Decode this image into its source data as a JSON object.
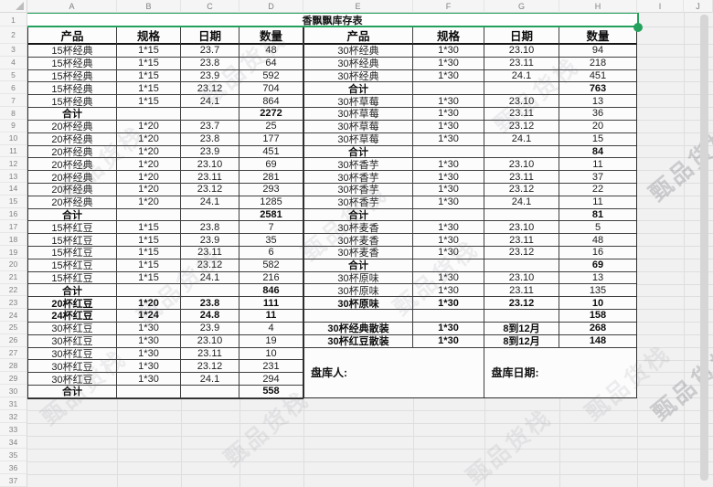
{
  "app": {
    "column_letters": [
      "A",
      "B",
      "C",
      "D",
      "E",
      "F",
      "G",
      "H",
      "I",
      "J"
    ],
    "visible_rows": 37
  },
  "title": "香飘飘库存表",
  "watermark": {
    "text": "甄品货栈"
  },
  "colors": {
    "selection_green": "#23a15d",
    "table_border": "#3f3f3f"
  },
  "left_table": {
    "headers": [
      "产品",
      "规格",
      "日期",
      "数量"
    ],
    "rows": [
      {
        "p": "15杯经典",
        "s": "1*15",
        "d": "23.7",
        "q": "48",
        "st": "n"
      },
      {
        "p": "15杯经典",
        "s": "1*15",
        "d": "23.8",
        "q": "64",
        "st": "n"
      },
      {
        "p": "15杯经典",
        "s": "1*15",
        "d": "23.9",
        "q": "592",
        "st": "n"
      },
      {
        "p": "15杯经典",
        "s": "1*15",
        "d": "23.12",
        "q": "704",
        "st": "n"
      },
      {
        "p": "15杯经典",
        "s": "1*15",
        "d": "24.1",
        "q": "864",
        "st": "n"
      },
      {
        "p": "合计",
        "s": "",
        "d": "",
        "q": "2272",
        "st": "s"
      },
      {
        "p": "20杯经典",
        "s": "1*20",
        "d": "23.7",
        "q": "25",
        "st": "n"
      },
      {
        "p": "20杯经典",
        "s": "1*20",
        "d": "23.8",
        "q": "177",
        "st": "n"
      },
      {
        "p": "20杯经典",
        "s": "1*20",
        "d": "23.9",
        "q": "451",
        "st": "n"
      },
      {
        "p": "20杯经典",
        "s": "1*20",
        "d": "23.10",
        "q": "69",
        "st": "n"
      },
      {
        "p": "20杯经典",
        "s": "1*20",
        "d": "23.11",
        "q": "281",
        "st": "n"
      },
      {
        "p": "20杯经典",
        "s": "1*20",
        "d": "23.12",
        "q": "293",
        "st": "n"
      },
      {
        "p": "20杯经典",
        "s": "1*20",
        "d": "24.1",
        "q": "1285",
        "st": "n"
      },
      {
        "p": "合计",
        "s": "",
        "d": "",
        "q": "2581",
        "st": "s"
      },
      {
        "p": "15杯红豆",
        "s": "1*15",
        "d": "23.8",
        "q": "7",
        "st": "n"
      },
      {
        "p": "15杯红豆",
        "s": "1*15",
        "d": "23.9",
        "q": "35",
        "st": "n"
      },
      {
        "p": "15杯红豆",
        "s": "1*15",
        "d": "23.11",
        "q": "6",
        "st": "n"
      },
      {
        "p": "15杯红豆",
        "s": "1*15",
        "d": "23.12",
        "q": "582",
        "st": "n"
      },
      {
        "p": "15杯红豆",
        "s": "1*15",
        "d": "24.1",
        "q": "216",
        "st": "n"
      },
      {
        "p": "合计",
        "s": "",
        "d": "",
        "q": "846",
        "st": "s"
      },
      {
        "p": "20杯红豆",
        "s": "1*20",
        "d": "23.8",
        "q": "111",
        "st": "b"
      },
      {
        "p": "24杯红豆",
        "s": "1*24",
        "d": "24.8",
        "q": "11",
        "st": "b"
      },
      {
        "p": "30杯红豆",
        "s": "1*30",
        "d": "23.9",
        "q": "4",
        "st": "n"
      },
      {
        "p": "30杯红豆",
        "s": "1*30",
        "d": "23.10",
        "q": "19",
        "st": "n"
      },
      {
        "p": "30杯红豆",
        "s": "1*30",
        "d": "23.11",
        "q": "10",
        "st": "n"
      },
      {
        "p": "30杯红豆",
        "s": "1*30",
        "d": "23.12",
        "q": "231",
        "st": "n"
      },
      {
        "p": "30杯红豆",
        "s": "1*30",
        "d": "24.1",
        "q": "294",
        "st": "n"
      },
      {
        "p": "合计",
        "s": "",
        "d": "",
        "q": "558",
        "st": "s"
      }
    ]
  },
  "right_table": {
    "headers": [
      "产品",
      "规格",
      "日期",
      "数量"
    ],
    "rows": [
      {
        "p": "30杯经典",
        "s": "1*30",
        "d": "23.10",
        "q": "94",
        "st": "n"
      },
      {
        "p": "30杯经典",
        "s": "1*30",
        "d": "23.11",
        "q": "218",
        "st": "n"
      },
      {
        "p": "30杯经典",
        "s": "1*30",
        "d": "24.1",
        "q": "451",
        "st": "n"
      },
      {
        "p": "合计",
        "s": "",
        "d": "",
        "q": "763",
        "st": "s"
      },
      {
        "p": "30杯草莓",
        "s": "1*30",
        "d": "23.10",
        "q": "13",
        "st": "n"
      },
      {
        "p": "30杯草莓",
        "s": "1*30",
        "d": "23.11",
        "q": "36",
        "st": "n"
      },
      {
        "p": "30杯草莓",
        "s": "1*30",
        "d": "23.12",
        "q": "20",
        "st": "n"
      },
      {
        "p": "30杯草莓",
        "s": "1*30",
        "d": "24.1",
        "q": "15",
        "st": "n"
      },
      {
        "p": "合计",
        "s": "",
        "d": "",
        "q": "84",
        "st": "s"
      },
      {
        "p": "30杯香芋",
        "s": "1*30",
        "d": "23.10",
        "q": "11",
        "st": "n"
      },
      {
        "p": "30杯香芋",
        "s": "1*30",
        "d": "23.11",
        "q": "37",
        "st": "n"
      },
      {
        "p": "30杯香芋",
        "s": "1*30",
        "d": "23.12",
        "q": "22",
        "st": "n"
      },
      {
        "p": "30杯香芋",
        "s": "1*30",
        "d": "24.1",
        "q": "11",
        "st": "n"
      },
      {
        "p": "合计",
        "s": "",
        "d": "",
        "q": "81",
        "st": "s"
      },
      {
        "p": "30杯麦香",
        "s": "1*30",
        "d": "23.10",
        "q": "5",
        "st": "n"
      },
      {
        "p": "30杯麦香",
        "s": "1*30",
        "d": "23.11",
        "q": "48",
        "st": "n"
      },
      {
        "p": "30杯麦香",
        "s": "1*30",
        "d": "23.12",
        "q": "16",
        "st": "n"
      },
      {
        "p": "合计",
        "s": "",
        "d": "",
        "q": "69",
        "st": "s"
      },
      {
        "p": "30杯原味",
        "s": "1*30",
        "d": "23.10",
        "q": "13",
        "st": "n"
      },
      {
        "p": "30杯原味",
        "s": "1*30",
        "d": "23.11",
        "q": "135",
        "st": "n"
      },
      {
        "p": "30杯原味",
        "s": "1*30",
        "d": "23.12",
        "q": "10",
        "st": "b"
      },
      {
        "p": "",
        "s": "",
        "d": "",
        "q": "158",
        "st": "s"
      },
      {
        "p": "30杯经典散装",
        "s": "1*30",
        "d": "8到12月",
        "q": "268",
        "st": "b"
      },
      {
        "p": "30杯红豆散装",
        "s": "1*30",
        "d": "8到12月",
        "q": "148",
        "st": "b"
      }
    ],
    "footer": {
      "person_label": "盘库人:",
      "date_label": "盘库日期:"
    }
  }
}
